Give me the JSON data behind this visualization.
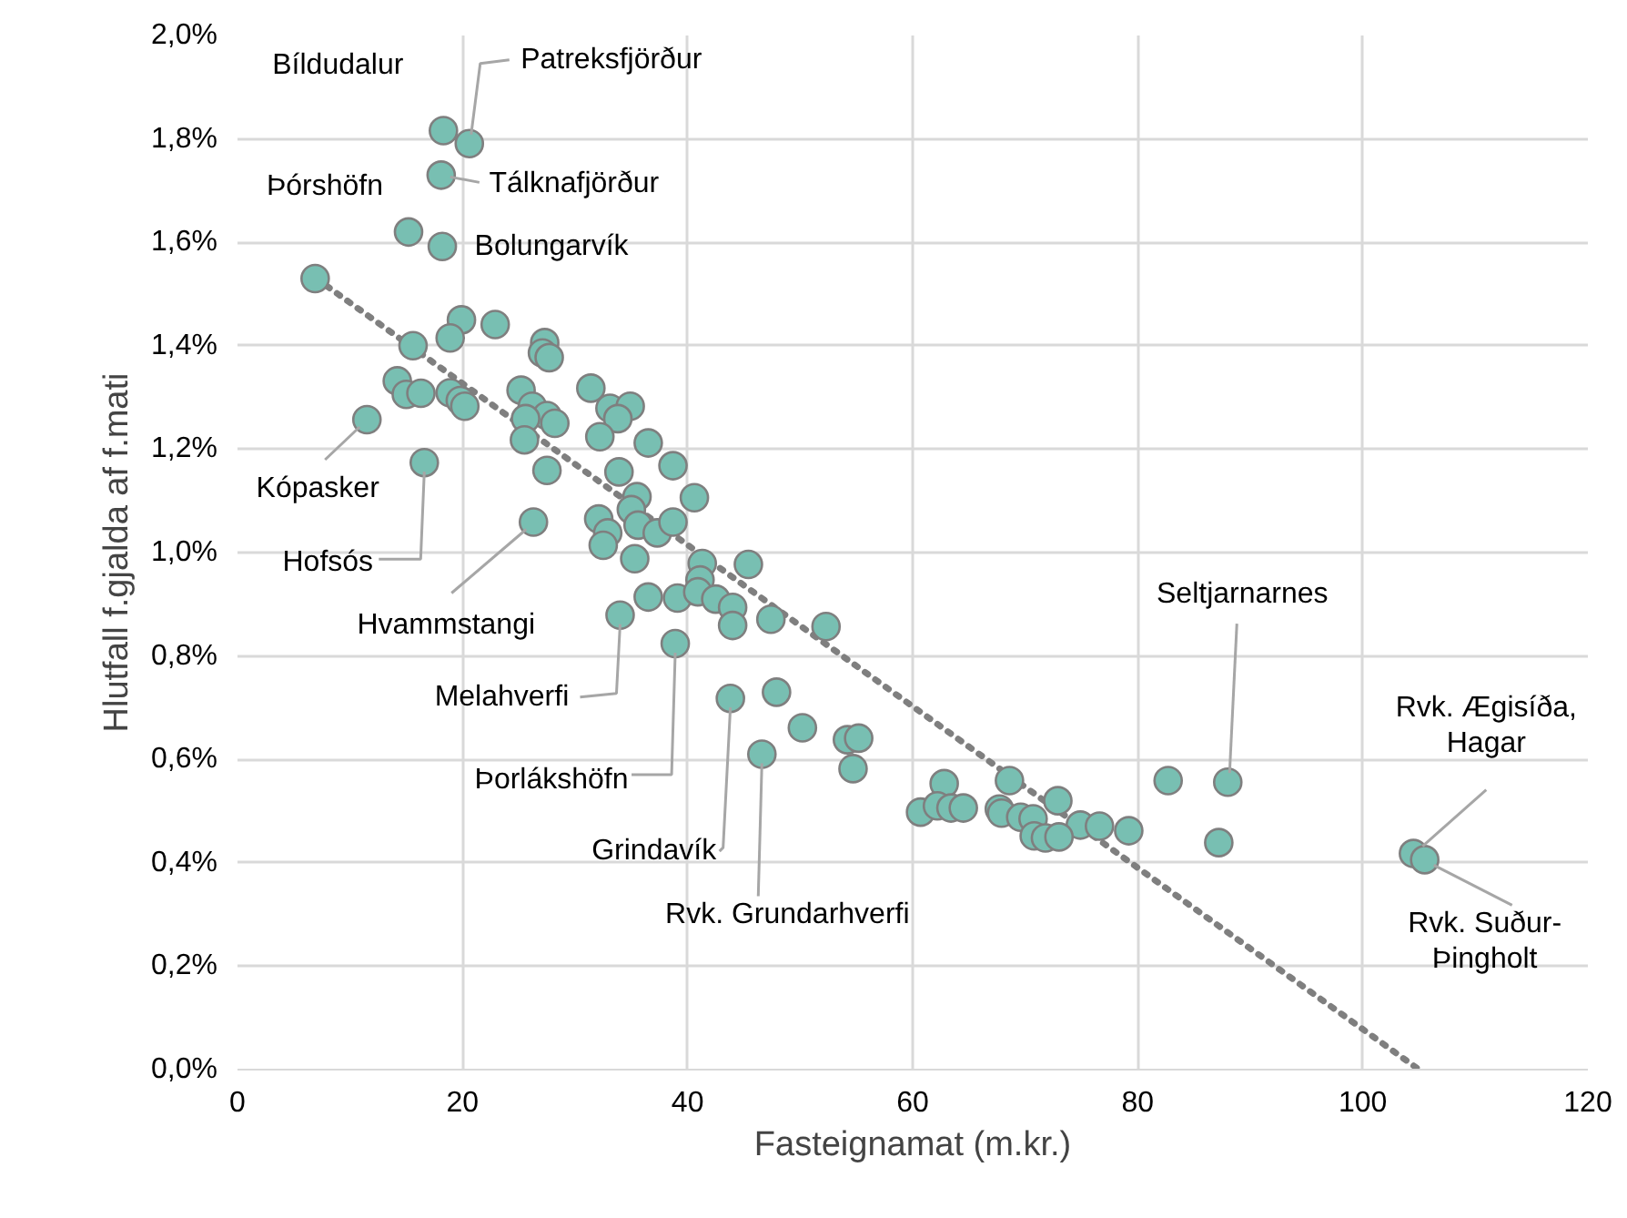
{
  "chart_data": {
    "type": "scatter",
    "xlabel": "Fasteignamat (m.kr.)",
    "ylabel": "Hlutfall f.gjalda af f.mati",
    "xlim": [
      0,
      120
    ],
    "xticks": [
      0,
      20,
      40,
      60,
      80,
      100,
      120
    ],
    "ylim": [
      0,
      2.0
    ],
    "yticks": [
      {
        "value": 0.0,
        "label": "0,0%"
      },
      {
        "value": 0.2,
        "label": "0,2%"
      },
      {
        "value": 0.4,
        "label": "0,4%"
      },
      {
        "value": 0.6,
        "label": "0,6%"
      },
      {
        "value": 0.8,
        "label": "0,8%"
      },
      {
        "value": 1.0,
        "label": "1,0%"
      },
      {
        "value": 1.2,
        "label": "1,2%"
      },
      {
        "value": 1.4,
        "label": "1,4%"
      },
      {
        "value": 1.6,
        "label": "1,6%"
      },
      {
        "value": 1.8,
        "label": "1,8%"
      },
      {
        "value": 2.0,
        "label": "2,0%"
      }
    ],
    "grid": true,
    "marker": "circle",
    "series": [
      {
        "type": "line",
        "color": "#7f7f7f",
        "line_style": "dotted",
        "marker": "none",
        "x": [
          7,
          105
        ],
        "values": [
          1.53,
          0.0
        ]
      },
      {
        "color": "#78bfb2",
        "x": [
          18.3,
          20.6,
          18.1,
          15.2,
          18.2,
          6.9,
          19.9,
          22.9,
          18.9,
          15.6,
          27.3,
          27.1,
          27.7,
          14.2,
          15.0,
          16.3,
          18.9,
          19.8,
          20.2,
          25.2,
          31.4,
          33.1,
          34.9,
          26.2,
          27.5,
          28.2,
          25.6,
          25.5,
          33.8,
          32.2,
          11.5,
          16.6,
          36.5,
          38.7,
          27.5,
          33.9,
          26.3,
          35.5,
          32.1,
          32.9,
          32.5,
          35.0,
          35.6,
          37.3,
          38.7,
          35.3,
          39.1,
          36.5,
          34.0,
          40.6,
          41.3,
          41.1,
          40.9,
          45.4,
          42.5,
          44.0,
          44.0,
          47.4,
          52.3,
          38.9,
          43.8,
          47.9,
          50.2,
          54.2,
          55.2,
          46.6,
          54.7,
          62.8,
          60.7,
          62.2,
          63.4,
          64.5,
          67.7,
          67.9,
          68.6,
          69.6,
          70.7,
          72.9,
          74.9,
          76.6,
          79.2,
          82.7,
          88.0,
          87.2,
          70.8,
          71.8,
          73.0,
          104.5,
          105.5
        ],
        "values": [
          1.816,
          1.791,
          1.73,
          1.62,
          1.592,
          1.53,
          1.45,
          1.441,
          1.415,
          1.4,
          1.406,
          1.386,
          1.377,
          1.332,
          1.306,
          1.308,
          1.309,
          1.294,
          1.283,
          1.314,
          1.318,
          1.279,
          1.283,
          1.283,
          1.265,
          1.25,
          1.259,
          1.218,
          1.259,
          1.224,
          1.257,
          1.174,
          1.212,
          1.168,
          1.159,
          1.156,
          1.059,
          1.108,
          1.065,
          1.038,
          1.014,
          1.083,
          1.053,
          1.038,
          1.059,
          0.988,
          0.912,
          0.914,
          0.879,
          1.106,
          0.979,
          0.947,
          0.924,
          0.977,
          0.91,
          0.894,
          0.859,
          0.871,
          0.857,
          0.824,
          0.718,
          0.73,
          0.661,
          0.638,
          0.641,
          0.61,
          0.582,
          0.553,
          0.498,
          0.51,
          0.506,
          0.506,
          0.504,
          0.496,
          0.559,
          0.488,
          0.485,
          0.52,
          0.473,
          0.471,
          0.462,
          0.559,
          0.556,
          0.439,
          0.452,
          0.448,
          0.45,
          0.418,
          0.406
        ]
      }
    ],
    "annotations": [
      {
        "text": "Bíldudalur",
        "x": 18.3,
        "y": 1.816
      },
      {
        "text": "Patreksfjörður",
        "x": 20.6,
        "y": 1.791
      },
      {
        "text": "Tálknafjörður",
        "x": 18.1,
        "y": 1.73
      },
      {
        "text": "Þórshöfn",
        "x": 15.2,
        "y": 1.62
      },
      {
        "text": "Bolungarvík",
        "x": 18.2,
        "y": 1.592
      },
      {
        "text": "Kópasker",
        "x": 11.5,
        "y": 1.257
      },
      {
        "text": "Hofsós",
        "x": 16.6,
        "y": 1.174
      },
      {
        "text": "Hvammstangi",
        "x": 26.3,
        "y": 1.059
      },
      {
        "text": "Melahverfi",
        "x": 34.0,
        "y": 0.879
      },
      {
        "text": "Þorlákshöfn",
        "x": 38.9,
        "y": 0.824
      },
      {
        "text": "Grindavík",
        "x": 43.8,
        "y": 0.718
      },
      {
        "text": "Rvk. Grundarhverfi",
        "x": 46.6,
        "y": 0.61
      },
      {
        "text": "Seltjarnarnes",
        "x": 88.0,
        "y": 0.556
      },
      {
        "text": "Rvk. Ægisíða,\nHagar",
        "x": 104.5,
        "y": 0.418
      },
      {
        "text": "Rvk. Suður-\nÞingholt",
        "x": 105.5,
        "y": 0.406
      }
    ]
  }
}
